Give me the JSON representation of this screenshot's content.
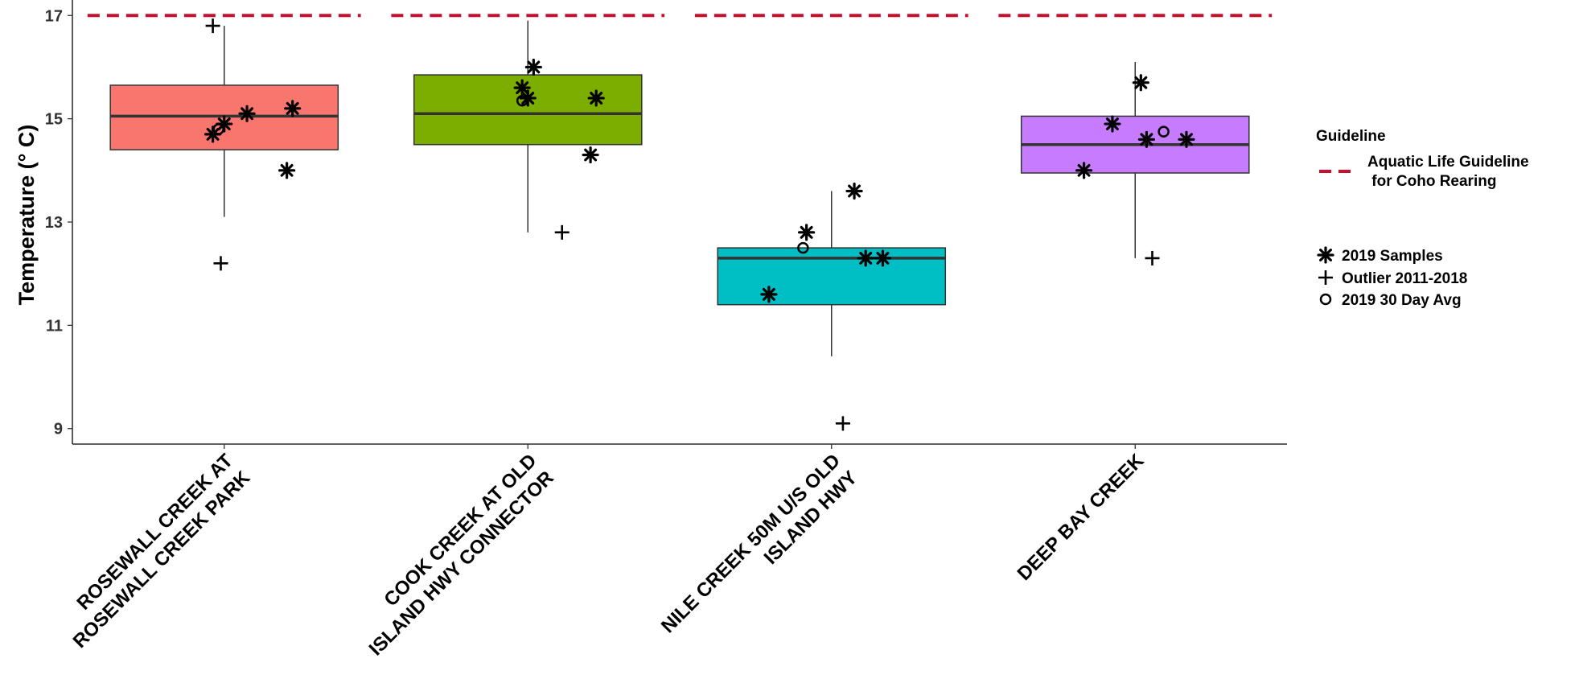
{
  "chart_data": {
    "type": "box",
    "xlabel": "",
    "ylabel": "Temperature (° C)",
    "ylim": [
      8.7,
      17.3
    ],
    "yticks": [
      9,
      11,
      13,
      15,
      17
    ],
    "grid": false,
    "categories": [
      [
        "ROSEWALL CREEK AT",
        "ROSEWALL CREEK PARK"
      ],
      [
        "COOK CREEK AT OLD",
        "ISLAND HWY CONNECTOR"
      ],
      [
        "NILE CREEK 50M U/S OLD",
        "ISLAND HWY"
      ],
      [
        "DEEP BAY CREEK"
      ]
    ],
    "boxes": [
      {
        "q1": 14.4,
        "median": 15.05,
        "q3": 15.65,
        "whisker_low": 13.1,
        "whisker_high": 16.8,
        "color": "#F8766D"
      },
      {
        "q1": 14.5,
        "median": 15.1,
        "q3": 15.85,
        "whisker_low": 12.8,
        "whisker_high": 16.9,
        "color": "#7CAE00"
      },
      {
        "q1": 11.4,
        "median": 12.3,
        "q3": 12.5,
        "whisker_low": 10.4,
        "whisker_high": 13.6,
        "color": "#00BFC4"
      },
      {
        "q1": 13.95,
        "median": 14.5,
        "q3": 15.05,
        "whisker_low": 12.3,
        "whisker_high": 16.1,
        "color": "#C77CFF"
      }
    ],
    "samples_2019": [
      [
        14.9,
        14.7,
        15.1,
        15.2,
        14.0
      ],
      [
        15.6,
        16.0,
        15.4,
        15.4,
        14.3
      ],
      [
        12.8,
        11.6,
        13.6,
        12.3,
        12.3
      ],
      [
        14.0,
        14.9,
        15.7,
        14.6,
        14.6
      ]
    ],
    "outliers_2011_2018": [
      [
        16.8,
        12.2
      ],
      [
        12.8
      ],
      [
        9.1
      ],
      [
        12.3
      ]
    ],
    "avg30_2019": [
      [
        14.8
      ],
      [
        15.35
      ],
      [
        12.5
      ],
      [
        14.75
      ]
    ],
    "guideline": {
      "value": 17,
      "color": "#C8102E"
    },
    "legend": {
      "title": "Guideline",
      "guideline_label": [
        "Aquatic Life Guideline",
        " for Coho Rearing"
      ],
      "samples_label": "2019 Samples",
      "outlier_label": "Outlier 2011-2018",
      "avg_label": "2019 30 Day Avg",
      "placement": "right"
    }
  }
}
